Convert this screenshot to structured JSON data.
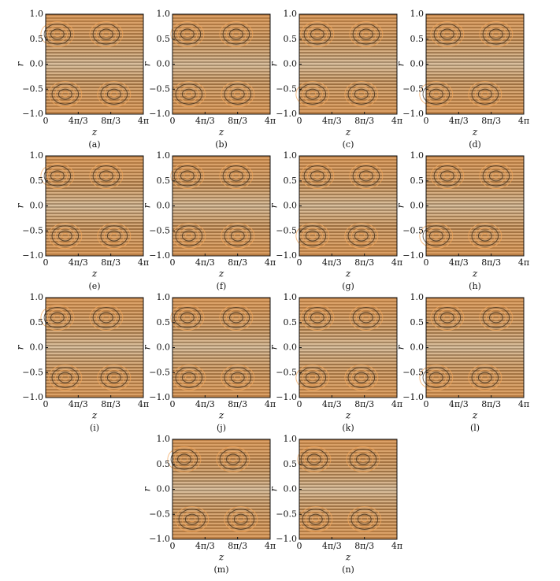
{
  "figure": {
    "xlabel": "z",
    "ylabel": "r",
    "xlim": [
      0,
      12.566370614359172
    ],
    "ylim": [
      -1,
      1
    ],
    "xticks": [
      0,
      {
        "value": 4.1887902047863905,
        "label": "4π/3"
      },
      {
        "value": 8.377580409572781,
        "label": "8π/3"
      },
      {
        "value": 12.566370614359172,
        "label": "4π"
      }
    ],
    "yticks": [
      {
        "value": 1,
        "label": "1.0"
      },
      0.5,
      {
        "value": 0,
        "label": "0.0"
      },
      {
        "value": -0.5,
        "label": "−0.5"
      },
      {
        "value": -1,
        "label": "−1.0"
      }
    ],
    "panels": [
      "(a)",
      "(b)",
      "(c)",
      "(d)",
      "(e)",
      "(f)",
      "(g)",
      "(h)",
      "(i)",
      "(j)",
      "(k)",
      "(l)",
      "(m)",
      "(n)"
    ]
  }
}
